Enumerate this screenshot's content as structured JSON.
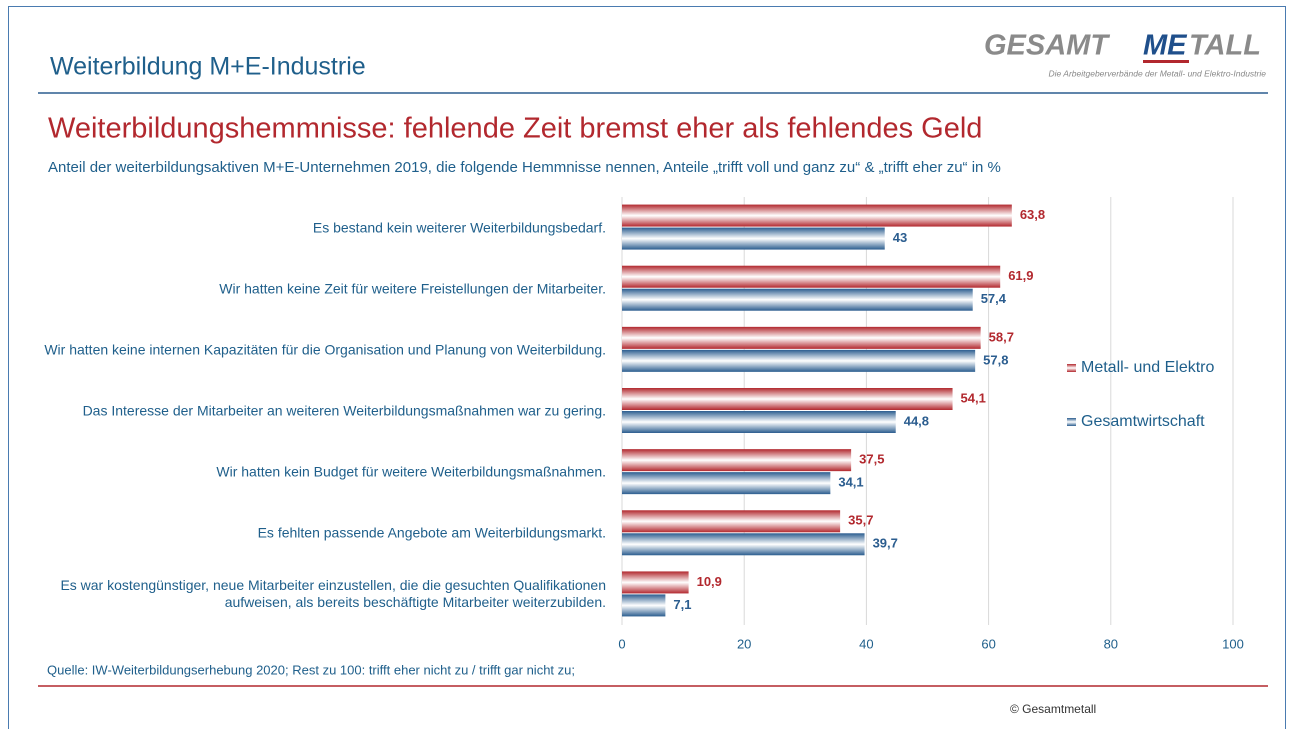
{
  "header": {
    "title": "Weiterbildung M+E-Industrie",
    "logo": {
      "parts": [
        "GESAMT",
        "ME",
        "TALL"
      ],
      "tagline": "Die Arbeitgeberverbände der Metall- und Elektro-Industrie"
    }
  },
  "chart_data": {
    "type": "bar",
    "orientation": "horizontal",
    "title": "Weiterbildungshemmnisse: fehlende Zeit bremst eher als fehlendes Geld",
    "subtitle": "Anteil der weiterbildungsaktiven M+E-Unternehmen 2019, die folgende Hemmnisse nennen, Anteile „trifft voll und ganz zu“ & „trifft eher zu“ in %",
    "categories": [
      "Es bestand kein weiterer Weiterbildungsbedarf.",
      "Wir hatten keine Zeit für weitere Freistellungen der Mitarbeiter.",
      "Wir hatten keine internen Kapazitäten für die Organisation und Planung von Weiterbildung.",
      "Das Interesse der Mitarbeiter an weiteren Weiterbildungsmaßnahmen war zu gering.",
      "Wir hatten kein Budget für weitere Weiterbildungsmaßnahmen.",
      "Es fehlten passende Angebote am Weiterbildungsmarkt.",
      "Es war kostengünstiger, neue Mitarbeiter einzustellen, die die gesuchten Qualifikationen aufweisen, als bereits beschäftigte Mitarbeiter weiterzubilden."
    ],
    "series": [
      {
        "name": "Metall- und Elektro",
        "color": "#b2282e",
        "values": [
          63.8,
          61.9,
          58.7,
          54.1,
          37.5,
          35.7,
          10.9
        ],
        "value_labels": [
          "63,8",
          "61,9",
          "58,7",
          "54,1",
          "37,5",
          "35,7",
          "10,9"
        ]
      },
      {
        "name": "Gesamtwirtschaft",
        "color": "#2b5d8f",
        "values": [
          43,
          57.4,
          57.8,
          44.8,
          34.1,
          39.7,
          7.1
        ],
        "value_labels": [
          "43",
          "57,4",
          "57,8",
          "44,8",
          "34,1",
          "39,7",
          "7,1"
        ]
      }
    ],
    "xlim": [
      0,
      100
    ],
    "xticks": [
      0,
      20,
      40,
      60,
      80,
      100
    ],
    "grid": true,
    "legend": "right"
  },
  "footer": {
    "source": "Quelle: IW-Weiterbildungserhebung 2020; Rest zu 100: trifft eher nicht zu / trifft gar nicht zu;",
    "copyright": "© Gesamtmetall"
  }
}
